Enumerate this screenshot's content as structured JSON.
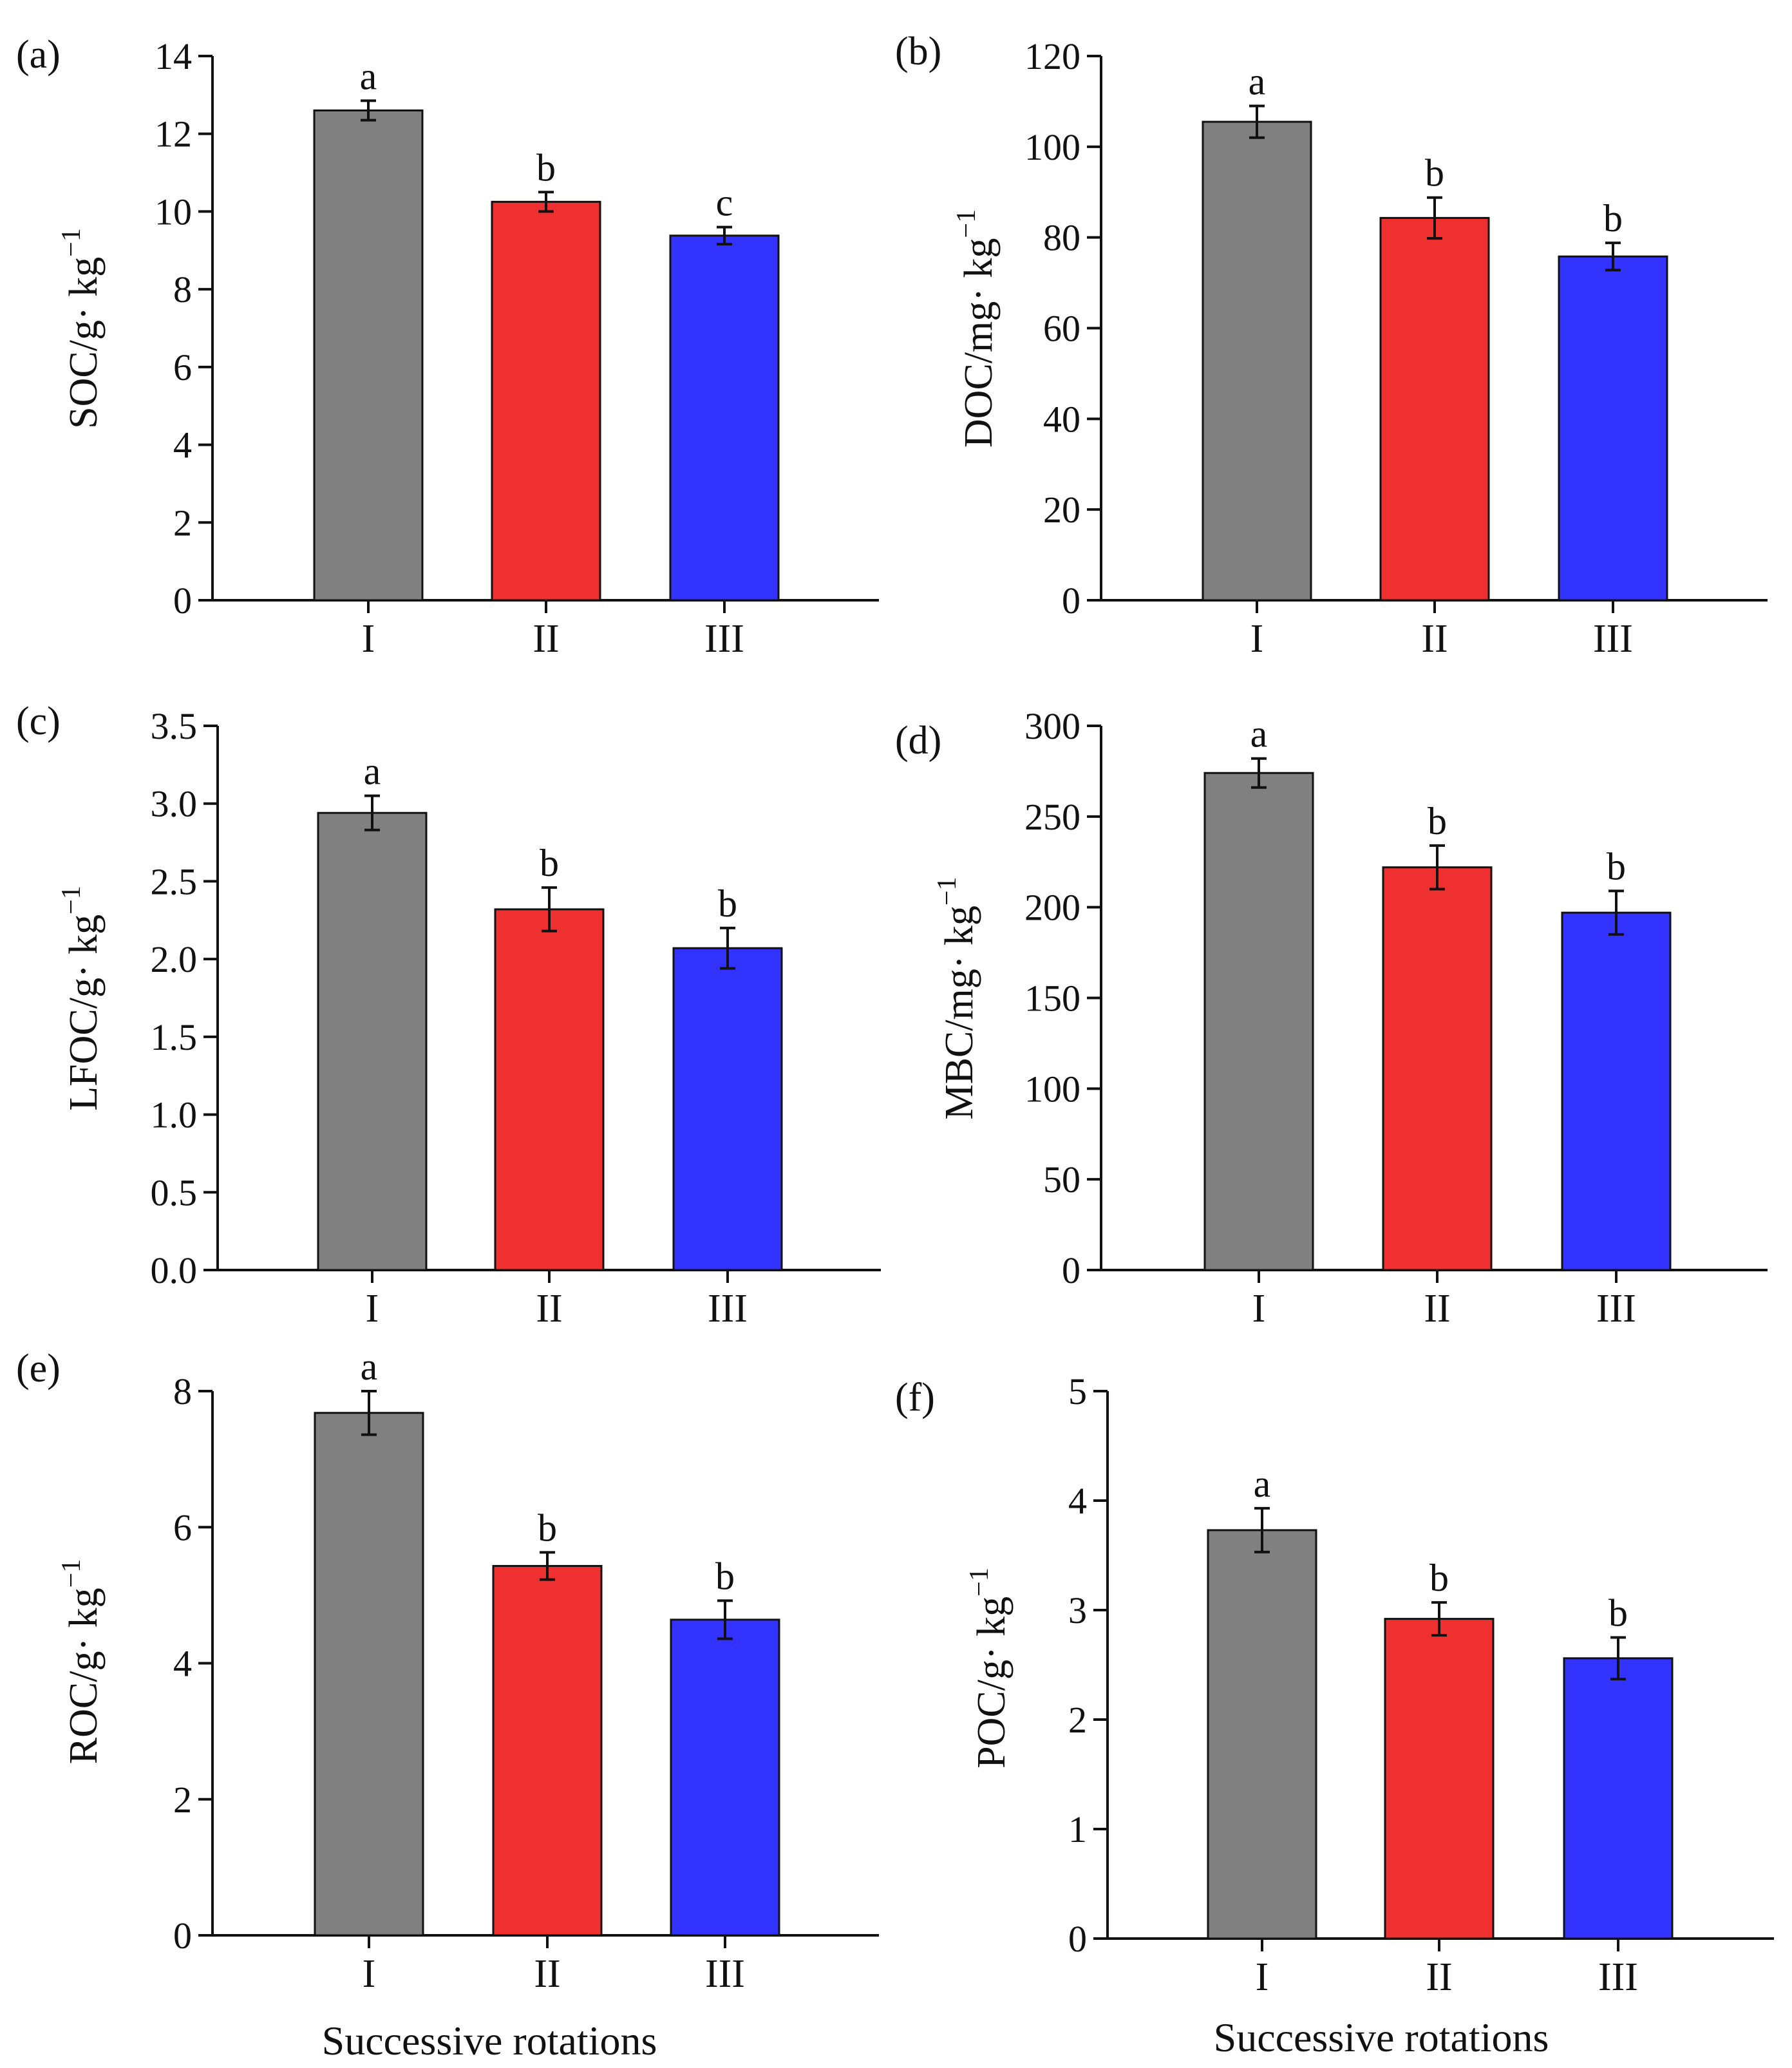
{
  "figure": {
    "xlabel_bottom": "Successive rotations"
  },
  "colors": {
    "I": "#808080",
    "II": "#ee3030",
    "III": "#3333ff"
  },
  "chart_data": [
    {
      "type": "bar",
      "panel_label": "(a)",
      "ylabel": "SOC/g· kg",
      "ylabel_exp": "−1",
      "categories": [
        "I",
        "II",
        "III"
      ],
      "values": [
        12.6,
        10.25,
        9.38
      ],
      "errors": [
        0.25,
        0.25,
        0.22
      ],
      "letters": [
        "a",
        "b",
        "c"
      ],
      "ylim": [
        0,
        14
      ],
      "yticks": [
        0,
        2,
        4,
        6,
        8,
        10,
        12,
        14
      ],
      "ytick_labels": [
        "0",
        "2",
        "4",
        "6",
        "8",
        "10",
        "12",
        "14"
      ]
    },
    {
      "type": "bar",
      "panel_label": "(b)",
      "ylabel": "DOC/mg· kg",
      "ylabel_exp": "−1",
      "categories": [
        "I",
        "II",
        "III"
      ],
      "values": [
        105.5,
        84.3,
        75.8
      ],
      "errors": [
        3.5,
        4.5,
        3.0
      ],
      "letters": [
        "a",
        "b",
        "b"
      ],
      "ylim": [
        0,
        120
      ],
      "yticks": [
        0,
        20,
        40,
        60,
        80,
        100,
        120
      ],
      "ytick_labels": [
        "0",
        "20",
        "40",
        "60",
        "80",
        "100",
        "120"
      ]
    },
    {
      "type": "bar",
      "panel_label": "(c)",
      "ylabel": "LFOC/g· kg",
      "ylabel_exp": "−1",
      "categories": [
        "I",
        "II",
        "III"
      ],
      "values": [
        2.94,
        2.32,
        2.07
      ],
      "errors": [
        0.11,
        0.14,
        0.13
      ],
      "letters": [
        "a",
        "b",
        "b"
      ],
      "ylim": [
        0,
        3.5
      ],
      "yticks": [
        0,
        0.5,
        1,
        1.5,
        2,
        2.5,
        3,
        3.5
      ],
      "ytick_labels": [
        "0.0",
        "0.5",
        "1.0",
        "1.5",
        "2.0",
        "2.5",
        "3.0",
        "3.5"
      ]
    },
    {
      "type": "bar",
      "panel_label": "(d)",
      "ylabel": "MBC/mg· kg",
      "ylabel_exp": "−1",
      "categories": [
        "I",
        "II",
        "III"
      ],
      "values": [
        274,
        222,
        197
      ],
      "errors": [
        8,
        12,
        12
      ],
      "letters": [
        "a",
        "b",
        "b"
      ],
      "ylim": [
        0,
        300
      ],
      "yticks": [
        0,
        50,
        100,
        150,
        200,
        250,
        300
      ],
      "ytick_labels": [
        "0",
        "50",
        "100",
        "150",
        "200",
        "250",
        "300"
      ]
    },
    {
      "type": "bar",
      "panel_label": "(e)",
      "ylabel": "ROC/g· kg",
      "ylabel_exp": "−1",
      "categories": [
        "I",
        "II",
        "III"
      ],
      "values": [
        7.68,
        5.43,
        4.64
      ],
      "errors": [
        0.32,
        0.2,
        0.28
      ],
      "letters": [
        "a",
        "b",
        "b"
      ],
      "ylim": [
        0,
        8
      ],
      "yticks": [
        0,
        2,
        4,
        6,
        8
      ],
      "ytick_labels": [
        "0",
        "2",
        "4",
        "6",
        "8"
      ]
    },
    {
      "type": "bar",
      "panel_label": "(f)",
      "ylabel": "POC/g· kg",
      "ylabel_exp": "−1",
      "categories": [
        "I",
        "II",
        "III"
      ],
      "values": [
        3.73,
        2.92,
        2.56
      ],
      "errors": [
        0.2,
        0.15,
        0.19
      ],
      "letters": [
        "a",
        "b",
        "b"
      ],
      "ylim": [
        0,
        5
      ],
      "yticks": [
        0,
        1,
        2,
        3,
        4,
        5
      ],
      "ytick_labels": [
        "0",
        "1",
        "2",
        "3",
        "4",
        "5"
      ]
    }
  ]
}
